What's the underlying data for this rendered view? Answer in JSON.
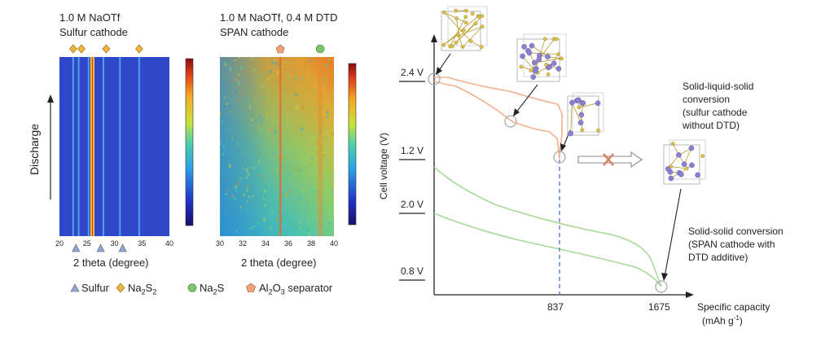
{
  "left_panel": {
    "title1_line1": "1.0 M NaOTf",
    "title1_line2": "Sulfur cathode",
    "title2_line1": "1.0 M NaOTf, 0.4 M DTD",
    "title2_line2": "SPAN cathode",
    "y_axis_label": "Discharge",
    "xlabel1": "2 theta (degree)",
    "xlabel2": "2 theta (degree)",
    "ticks1": [
      "20",
      "25",
      "30",
      "35",
      "40"
    ],
    "ticks2": [
      "30",
      "32",
      "34",
      "36",
      "38",
      "40"
    ],
    "legend": {
      "sulfur": "Sulfur",
      "na2s2": "Na2S2",
      "na2s": "Na2S",
      "al2o3": "Al2O3 separator"
    },
    "colors": {
      "sulfur": "#8fa8d8",
      "na2s2": "#f2b53a",
      "na2s": "#7cc46a",
      "al2o3": "#f1a277"
    }
  },
  "chart_data": [
    {
      "type": "heatmap",
      "title": "1.0 M NaOTf Sulfur cathode",
      "xlabel": "2 theta (degree)",
      "ylabel": "Discharge",
      "xlim": [
        20,
        40
      ],
      "bright_lines_2theta": [
        22.5,
        23.5,
        25.3,
        26.0,
        28.0,
        31.0,
        34.5
      ],
      "markers_top_na2s2": [
        22.5,
        24.0,
        28.5,
        34.5
      ],
      "markers_bottom_sulfur": [
        23.0,
        27.5,
        31.5
      ]
    },
    {
      "type": "heatmap",
      "title": "1.0 M NaOTf, 0.4 M DTD SPAN cathode",
      "xlabel": "2 theta (degree)",
      "xlim": [
        30,
        40
      ],
      "bright_lines_2theta": [
        35.3,
        38.8
      ],
      "markers_top_al2o3": [
        35.3
      ],
      "markers_top_na2s": [
        38.8
      ]
    },
    {
      "type": "line",
      "xlabel": "Specific capacity (mAh g-1)",
      "ylabel": "Cell voltage (V)",
      "x_ticks": [
        "837",
        "1675"
      ],
      "y_ticks_upper": [
        "2.4 V",
        "1.2 V"
      ],
      "y_ticks_lower": [
        "2.0 V",
        "0.8 V"
      ],
      "series": [],
      "annotations": [
        "Solid-liquid-solid conversion (sulfur cathode without DTD)",
        "Solid-solid conversion (SPAN cathode with DTD additive)"
      ]
    }
  ],
  "right_panel": {
    "ylabel": "Cell voltage (V)",
    "xlabel_line1": "Specific capacity",
    "xlabel_line2": "(mAh g-1)",
    "tick_24": "2.4 V",
    "tick_12": "1.2 V",
    "tick_20": "2.0 V",
    "tick_08": "0.8 V",
    "tick_837": "837",
    "tick_1675": "1675",
    "note1": [
      "Solid-liquid-solid",
      "conversion",
      "(sulfur cathode",
      "without DTD)"
    ],
    "note2": [
      "Solid-solid conversion",
      "(SPAN cathode with",
      "DTD additive)"
    ],
    "colors": {
      "orange_curve": "#f4b08c",
      "green_curve": "#a8d89a",
      "dash": "#5577cc",
      "cross": "#d9826a"
    }
  }
}
